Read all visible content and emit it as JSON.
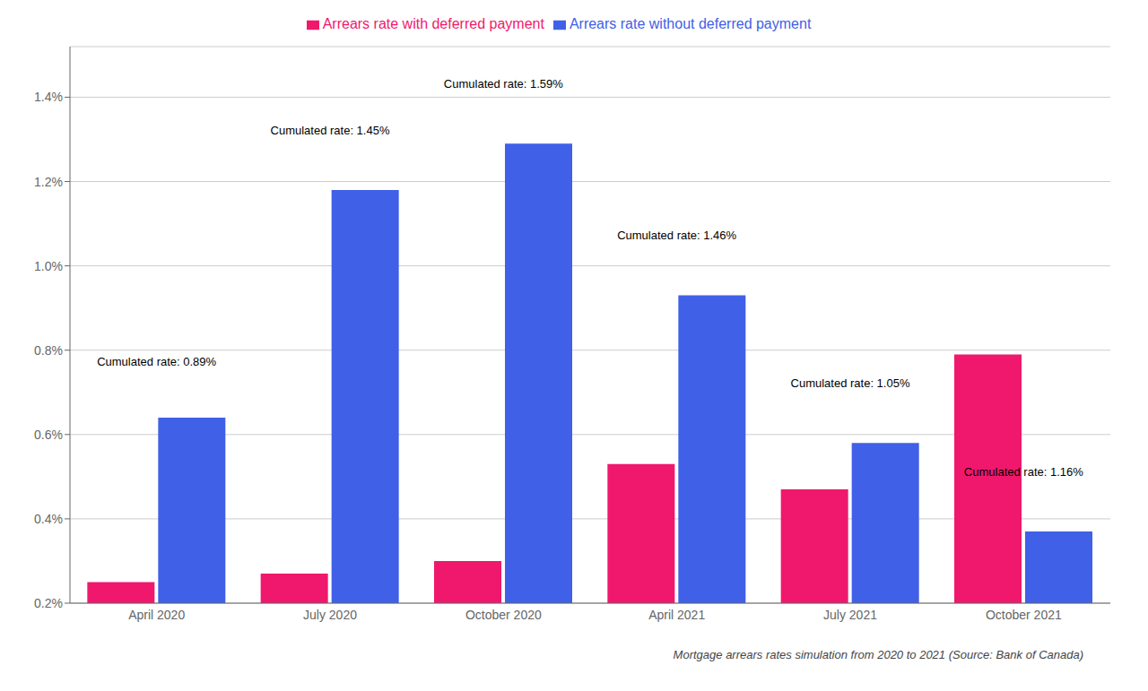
{
  "chart_data": {
    "type": "bar",
    "categories": [
      "April 2020",
      "July 2020",
      "October 2020",
      "April 2021",
      "July 2021",
      "October 2021"
    ],
    "series": [
      {
        "name": "Arrears rate with deferred payment",
        "color": "#F0186C",
        "values": [
          0.0025,
          0.0027,
          0.003,
          0.0053,
          0.0047,
          0.0079
        ]
      },
      {
        "name": "Arrears rate without deferred payment",
        "color": "#4060E8",
        "values": [
          0.0064,
          0.0118,
          0.0129,
          0.0093,
          0.0058,
          0.0037
        ]
      }
    ],
    "annotations": [
      {
        "text": "Cumulated rate: 0.89%",
        "x": "April 2020",
        "y": 0.0075
      },
      {
        "text": "Cumulated rate: 1.45%",
        "x": "July 2020",
        "y": 0.013
      },
      {
        "text": "Cumulated rate: 1.59%",
        "x": "October 2020",
        "y": 0.0141
      },
      {
        "text": "Cumulated rate: 1.46%",
        "x": "April 2021",
        "y": 0.0105
      },
      {
        "text": "Cumulated rate: 1.05%",
        "x": "July 2021",
        "y": 0.007
      },
      {
        "text": "Cumulated rate: 1.16%",
        "x": "October 2021",
        "y": 0.0049
      }
    ],
    "ylim": [
      0.002,
      0.0152
    ],
    "yticks": [
      {
        "value": 0.002,
        "label": "0.2%"
      },
      {
        "value": 0.004,
        "label": "0.4%"
      },
      {
        "value": 0.006,
        "label": "0.6%"
      },
      {
        "value": 0.008,
        "label": "0.8%"
      },
      {
        "value": 0.01,
        "label": "1.0%"
      },
      {
        "value": 0.012,
        "label": "1.2%"
      },
      {
        "value": 0.014,
        "label": "1.4%"
      }
    ],
    "grid": true,
    "legend": "top",
    "footnote": "Mortgage arrears rates simulation from 2020 to 2021 (Source: Bank of Canada)"
  }
}
